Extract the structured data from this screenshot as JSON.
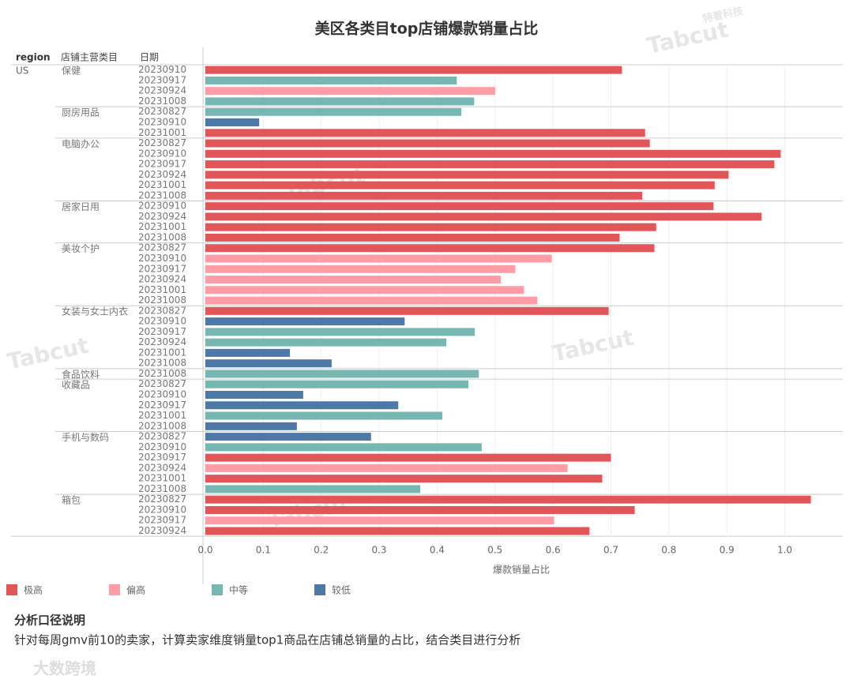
{
  "chart_data": {
    "type": "bar",
    "orientation": "horizontal",
    "title": "美区各类目top店铺爆款销量占比",
    "headers": [
      "region",
      "店铺主营类目",
      "日期"
    ],
    "region": "US",
    "x_label": "爆款销量占比",
    "xlim": [
      -0.004,
      1.1
    ],
    "xticks": [
      {
        "value": 0,
        "label": "0.0"
      },
      0.1,
      0.2,
      0.3,
      0.4,
      0.5,
      0.6,
      0.7,
      0.8,
      0.9,
      {
        "value": 1,
        "label": "1.0"
      }
    ],
    "grid": true,
    "legend": [
      {
        "name": "极高",
        "color": "#e15759"
      },
      {
        "name": "偏高",
        "color": "#ff9da7"
      },
      {
        "name": "中等",
        "color": "#76b7b2"
      },
      {
        "name": "较低",
        "color": "#4e79a7"
      }
    ],
    "groups": [
      {
        "name": "保健",
        "rows": [
          {
            "date": "20230910",
            "value": 0.719,
            "color": "#e15759"
          },
          {
            "date": "20230917",
            "value": 0.434,
            "color": "#76b7b2"
          },
          {
            "date": "20230924",
            "value": 0.5,
            "color": "#ff9da7"
          },
          {
            "date": "20231008",
            "value": 0.464,
            "color": "#76b7b2"
          }
        ]
      },
      {
        "name": "厨房用品",
        "rows": [
          {
            "date": "20230827",
            "value": 0.442,
            "color": "#76b7b2"
          },
          {
            "date": "20230910",
            "value": 0.093,
            "color": "#4e79a7"
          },
          {
            "date": "20231001",
            "value": 0.759,
            "color": "#e15759"
          }
        ]
      },
      {
        "name": "电脑办公",
        "rows": [
          {
            "date": "20230827",
            "value": 0.767,
            "color": "#e15759"
          },
          {
            "date": "20230910",
            "value": 0.993,
            "color": "#e15759"
          },
          {
            "date": "20230917",
            "value": 0.982,
            "color": "#e15759"
          },
          {
            "date": "20230924",
            "value": 0.903,
            "color": "#e15759"
          },
          {
            "date": "20231001",
            "value": 0.879,
            "color": "#e15759"
          },
          {
            "date": "20231008",
            "value": 0.754,
            "color": "#e15759"
          }
        ]
      },
      {
        "name": "居家日用",
        "rows": [
          {
            "date": "20230910",
            "value": 0.877,
            "color": "#e15759"
          },
          {
            "date": "20230924",
            "value": 0.96,
            "color": "#e15759"
          },
          {
            "date": "20231001",
            "value": 0.778,
            "color": "#e15759"
          },
          {
            "date": "20231008",
            "value": 0.715,
            "color": "#e15759"
          }
        ]
      },
      {
        "name": "美妆个护",
        "rows": [
          {
            "date": "20230827",
            "value": 0.775,
            "color": "#e15759"
          },
          {
            "date": "20230910",
            "value": 0.598,
            "color": "#ff9da7"
          },
          {
            "date": "20230917",
            "value": 0.535,
            "color": "#ff9da7"
          },
          {
            "date": "20230924",
            "value": 0.51,
            "color": "#ff9da7"
          },
          {
            "date": "20231001",
            "value": 0.55,
            "color": "#ff9da7"
          },
          {
            "date": "20231008",
            "value": 0.573,
            "color": "#ff9da7"
          }
        ]
      },
      {
        "name": "女装与女士内衣",
        "rows": [
          {
            "date": "20230827",
            "value": 0.696,
            "color": "#e15759"
          },
          {
            "date": "20230910",
            "value": 0.344,
            "color": "#4e79a7"
          },
          {
            "date": "20230917",
            "value": 0.465,
            "color": "#76b7b2"
          },
          {
            "date": "20230924",
            "value": 0.416,
            "color": "#76b7b2"
          },
          {
            "date": "20231001",
            "value": 0.146,
            "color": "#4e79a7"
          },
          {
            "date": "20231008",
            "value": 0.218,
            "color": "#4e79a7"
          }
        ]
      },
      {
        "name": "食品饮料",
        "rows": [
          {
            "date": "20231008",
            "value": 0.472,
            "color": "#76b7b2"
          }
        ]
      },
      {
        "name": "收藏品",
        "rows": [
          {
            "date": "20230827",
            "value": 0.454,
            "color": "#76b7b2"
          },
          {
            "date": "20230910",
            "value": 0.169,
            "color": "#4e79a7"
          },
          {
            "date": "20230917",
            "value": 0.333,
            "color": "#4e79a7"
          },
          {
            "date": "20231001",
            "value": 0.409,
            "color": "#76b7b2"
          },
          {
            "date": "20231008",
            "value": 0.158,
            "color": "#4e79a7"
          }
        ]
      },
      {
        "name": "手机与数码",
        "rows": [
          {
            "date": "20230827",
            "value": 0.286,
            "color": "#4e79a7"
          },
          {
            "date": "20230910",
            "value": 0.477,
            "color": "#76b7b2"
          },
          {
            "date": "20230917",
            "value": 0.7,
            "color": "#e15759"
          },
          {
            "date": "20230924",
            "value": 0.625,
            "color": "#ff9da7"
          },
          {
            "date": "20231001",
            "value": 0.685,
            "color": "#e15759"
          },
          {
            "date": "20231008",
            "value": 0.371,
            "color": "#76b7b2"
          }
        ]
      },
      {
        "name": "箱包",
        "rows": [
          {
            "date": "20230827",
            "value": 1.045,
            "color": "#e15759"
          },
          {
            "date": "20230910",
            "value": 0.741,
            "color": "#e15759"
          },
          {
            "date": "20230917",
            "value": 0.602,
            "color": "#ff9da7"
          },
          {
            "date": "20230924",
            "value": 0.663,
            "color": "#e15759"
          }
        ]
      }
    ],
    "note_title": "分析口径说明",
    "note": "针对每周gmv前10的卖家，计算卖家维度销量top1商品在店铺总销量的占比，结合类目进行分析",
    "watermarks": [
      "Tabcut",
      "特看科技",
      "大数跨境"
    ]
  }
}
